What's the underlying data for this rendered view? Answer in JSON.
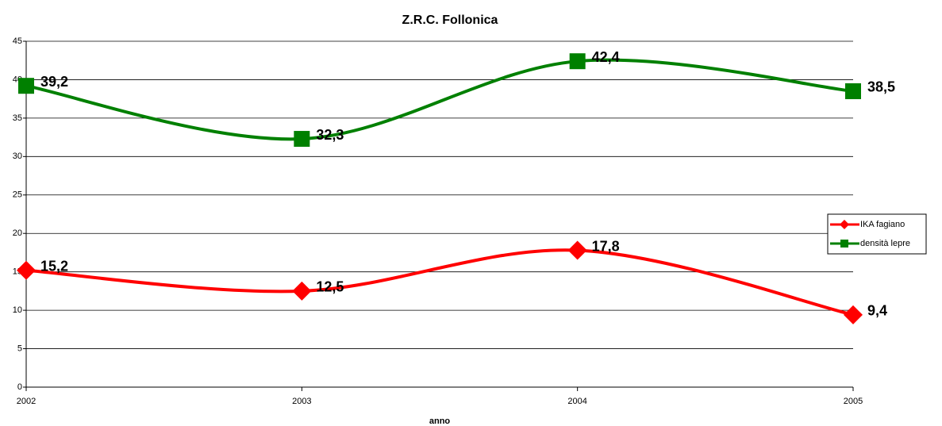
{
  "chart_data": {
    "type": "line",
    "title": "Z.R.C. Follonica",
    "x_label": "anno",
    "x": [
      2002,
      2003,
      2004,
      2005
    ],
    "xlim": [
      2002,
      2005
    ],
    "xticks": [
      2002,
      2003,
      2004,
      2005
    ],
    "ylim": [
      0,
      45
    ],
    "yticks": [
      0,
      5,
      10,
      15,
      20,
      25,
      30,
      35,
      40,
      45
    ],
    "grid": true,
    "smooth": true,
    "legend": "right",
    "series": [
      {
        "name": "IKA fagiano",
        "color": "#ff0000",
        "marker": "diamond",
        "values": [
          15.2,
          12.5,
          17.8,
          9.4
        ],
        "value_labels": [
          "15,2",
          "12,5",
          "17,8",
          "9,4"
        ]
      },
      {
        "name": "densità lepre",
        "color": "#008000",
        "marker": "square",
        "values": [
          39.2,
          32.3,
          42.4,
          38.5
        ],
        "value_labels": [
          "39,2",
          "32,3",
          "42,4",
          "38,5"
        ]
      }
    ]
  }
}
